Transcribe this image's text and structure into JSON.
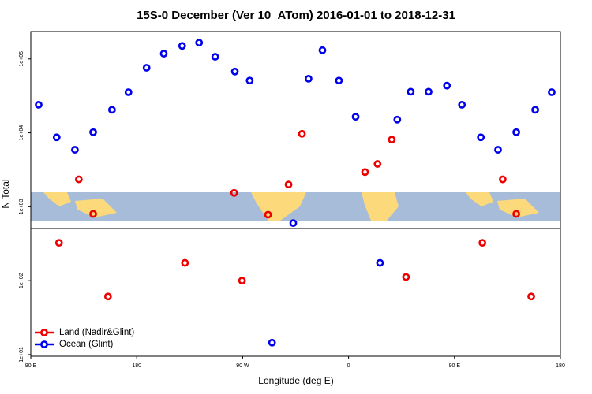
{
  "chart_data": {
    "type": "scatter",
    "title": "15S-0 December (Ver 10_ATom)   2016-01-01 to 2018-12-31",
    "x_label": "Longitude (deg E)",
    "y_label": "N Total",
    "log_y": true,
    "xlim": [
      90,
      540
    ],
    "ylim": [
      9.5,
      235000
    ],
    "xticks": [
      {
        "value": 90,
        "label": "90 E"
      },
      {
        "value": 180,
        "label": "180"
      },
      {
        "value": 270,
        "label": "90 W"
      },
      {
        "value": 360,
        "label": "0"
      },
      {
        "value": 450,
        "label": "90 E"
      },
      {
        "value": 540,
        "label": "180"
      }
    ],
    "yticks": [
      {
        "value": 10,
        "label": "1e+01"
      },
      {
        "value": 100,
        "label": "1e+02"
      },
      {
        "value": 1000,
        "label": "1e+03"
      },
      {
        "value": 10000,
        "label": "1e+04"
      },
      {
        "value": 100000,
        "label": "1e+05"
      }
    ],
    "legend_position": "bottom-left",
    "series": [
      {
        "name": "Land (Nadir&Glint)",
        "color": "#ee0000",
        "x": [
          114,
          130.8,
          143,
          155.6,
          221,
          262.8,
          269.5,
          291.6,
          309,
          320.4,
          374,
          384.6,
          396.7,
          408.8,
          473.7,
          491,
          502.5,
          515.2
        ],
        "values": [
          325,
          2350,
          800,
          61,
          174,
          1540,
          100,
          780,
          2000,
          9700,
          2950,
          3800,
          8100,
          112,
          325,
          2350,
          800,
          61
        ]
      },
      {
        "name": "Ocean (Glint)",
        "color": "#0000ee",
        "x": [
          96.7,
          112,
          127.5,
          143,
          159,
          173,
          188.4,
          203,
          218.6,
          233,
          246.7,
          263.4,
          276,
          295,
          313,
          326,
          337.8,
          351.8,
          366,
          386.7,
          401.4,
          412.8,
          428,
          443.6,
          456.3,
          472.4,
          487,
          502.5,
          518.6,
          532.6
        ],
        "values": [
          24000,
          8700,
          5900,
          10200,
          20500,
          35500,
          76000,
          118000,
          150000,
          166000,
          107000,
          67500,
          51000,
          14.5,
          600,
          54000,
          131000,
          51000,
          16500,
          174,
          15100,
          36000,
          36000,
          43500,
          24000,
          8700,
          5900,
          10200,
          20500,
          35500
        ]
      }
    ]
  }
}
